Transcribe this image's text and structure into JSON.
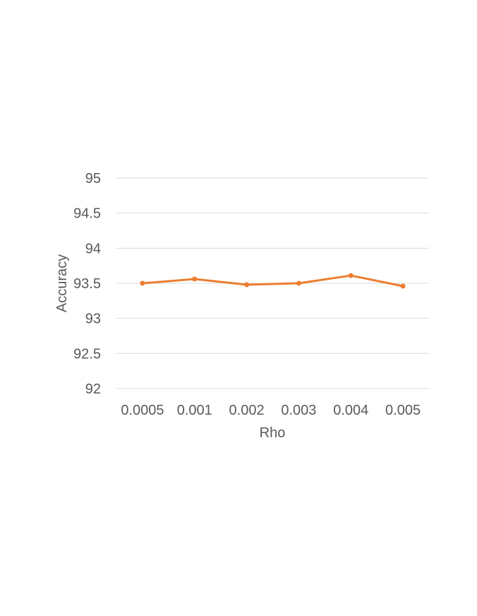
{
  "chart_data": {
    "type": "line",
    "title": "",
    "xlabel": "Rho",
    "ylabel": "Accuracy",
    "categories": [
      "0.0005",
      "0.001",
      "0.002",
      "0.003",
      "0.004",
      "0.005"
    ],
    "series": [
      {
        "name": "",
        "values": [
          93.5,
          93.56,
          93.48,
          93.5,
          93.61,
          93.46
        ],
        "color": "#ED7D31"
      }
    ],
    "ylim": [
      92,
      95
    ],
    "yticks": [
      92,
      92.5,
      93,
      93.5,
      94,
      94.5,
      95
    ],
    "ytick_labels": [
      "92",
      "92.5",
      "93",
      "93.5",
      "94",
      "94.5",
      "95"
    ],
    "grid": true,
    "legend": "none"
  }
}
